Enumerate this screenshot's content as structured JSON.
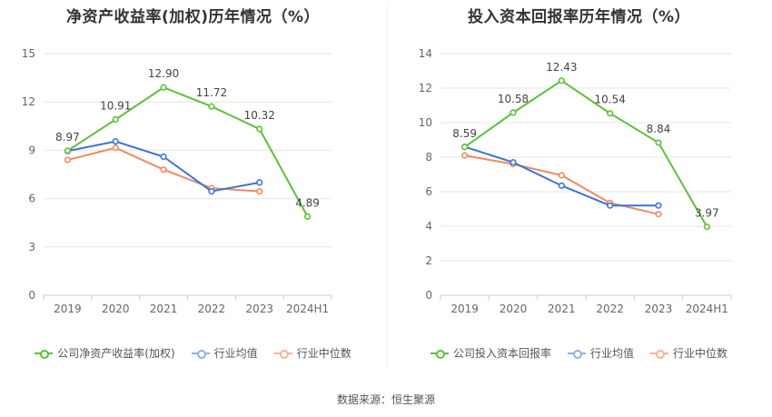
{
  "charts": [
    {
      "title": "净资产收益率(加权)历年情况（%）",
      "legend": [
        "公司净资产收益率(加权)",
        "行业均值",
        "行业中位数"
      ],
      "chart_data": {
        "type": "line",
        "title": "净资产收益率(加权)历年情况（%）",
        "categories": [
          "2019",
          "2020",
          "2021",
          "2022",
          "2023",
          "2024H1"
        ],
        "ylim": [
          0,
          15
        ],
        "yticks": [
          "0",
          "3",
          "6",
          "9",
          "12",
          "15"
        ],
        "grid": true,
        "legend_position": "bottom",
        "series": [
          {
            "name": "公司净资产收益率(加权)",
            "color": "#5ac234",
            "values": [
              8.97,
              10.91,
              12.9,
              11.72,
              10.32,
              4.89
            ],
            "labels": [
              "8.97",
              "10.91",
              "12.90",
              "11.72",
              "10.32",
              "4.89"
            ]
          },
          {
            "name": "行业均值",
            "color": "#3a74d6",
            "values": [
              8.95,
              9.55,
              8.6,
              6.45,
              7.0,
              null
            ]
          },
          {
            "name": "行业中位数",
            "color": "#f08a5d",
            "values": [
              8.4,
              9.15,
              7.8,
              6.65,
              6.45,
              null
            ]
          }
        ]
      }
    },
    {
      "title": "投入资本回报率历年情况（%）",
      "legend": [
        "公司投入资本回报率",
        "行业均值",
        "行业中位数"
      ],
      "chart_data": {
        "type": "line",
        "title": "投入资本回报率历年情况（%）",
        "categories": [
          "2019",
          "2020",
          "2021",
          "2022",
          "2023",
          "2024H1"
        ],
        "ylim": [
          0,
          14
        ],
        "yticks": [
          "0",
          "2",
          "4",
          "6",
          "8",
          "10",
          "12",
          "14"
        ],
        "grid": true,
        "legend_position": "bottom",
        "series": [
          {
            "name": "公司投入资本回报率",
            "color": "#5ac234",
            "values": [
              8.59,
              10.58,
              12.43,
              10.54,
              8.84,
              3.97
            ],
            "labels": [
              "8.59",
              "10.58",
              "12.43",
              "10.54",
              "8.84",
              "3.97"
            ]
          },
          {
            "name": "行业均值",
            "color": "#3a74d6",
            "values": [
              8.6,
              7.7,
              6.35,
              5.2,
              5.2,
              null
            ]
          },
          {
            "name": "行业中位数",
            "color": "#f08a5d",
            "values": [
              8.1,
              7.6,
              6.95,
              5.35,
              4.7,
              null
            ]
          }
        ]
      }
    }
  ],
  "source": "数据来源：恒生聚源"
}
